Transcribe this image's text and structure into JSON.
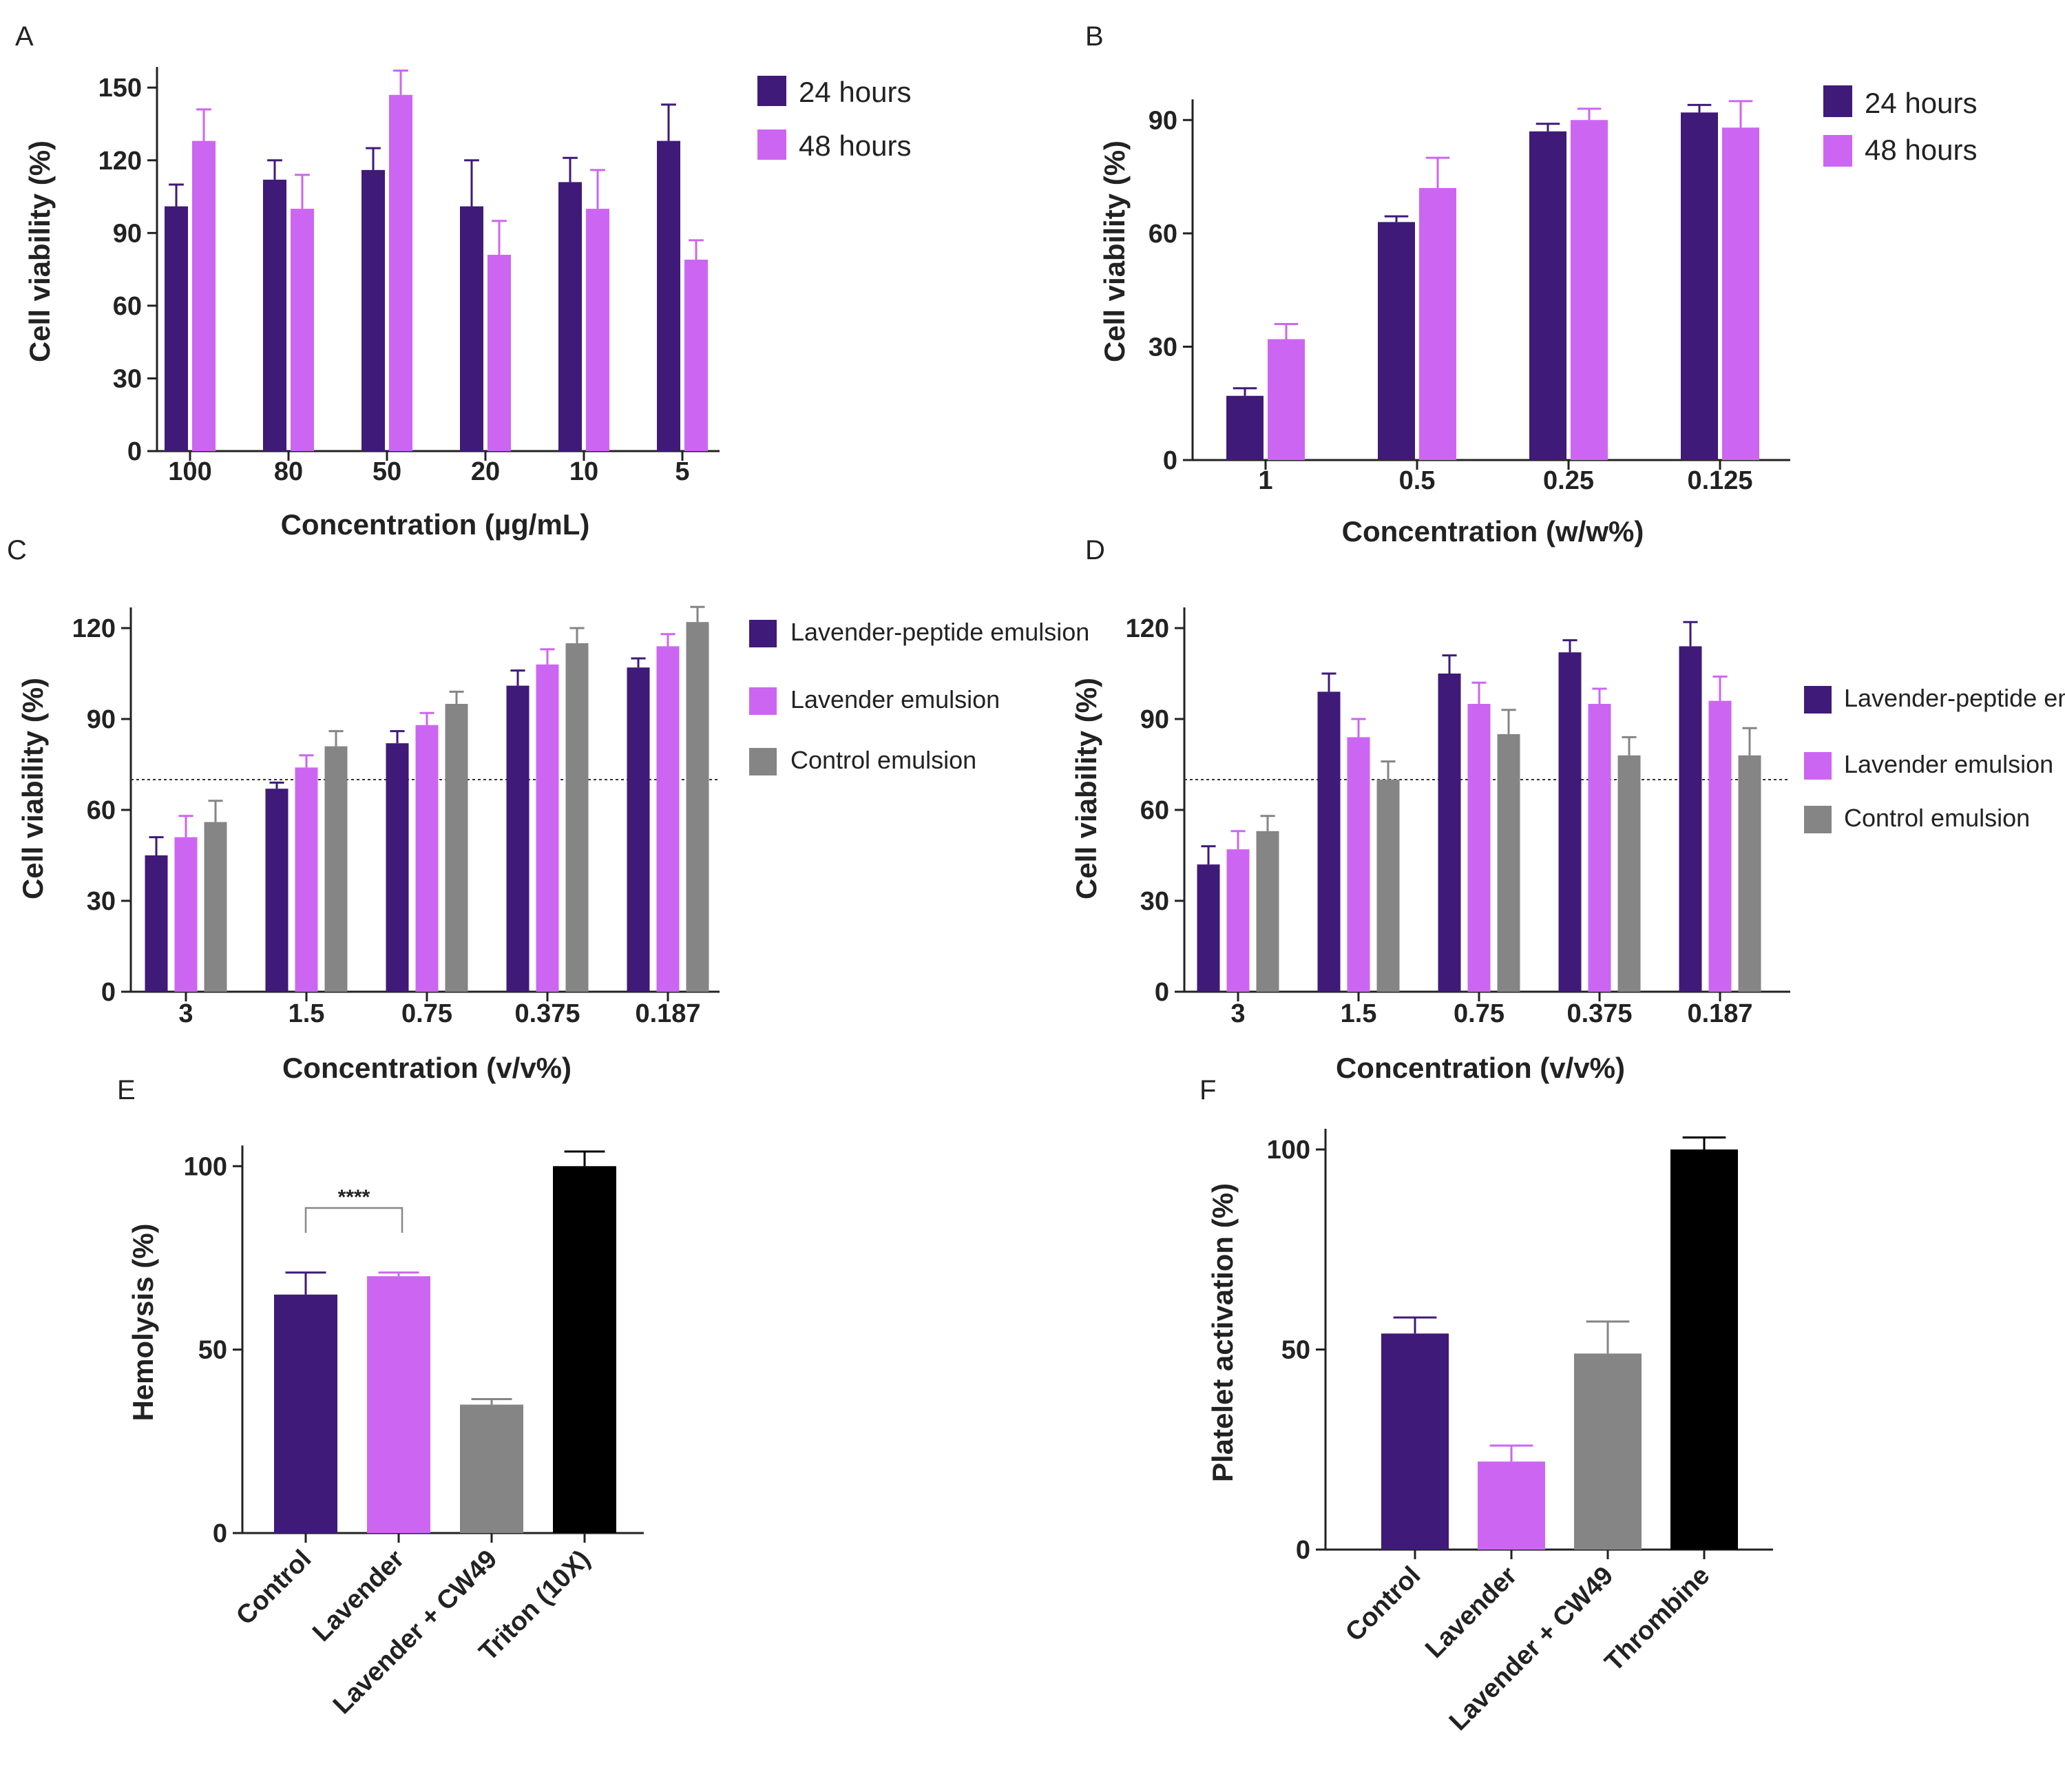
{
  "colors": {
    "dark_purple": "#3f1a78",
    "light_purple": "#cc66f2",
    "gray": "#858585",
    "black": "#000000",
    "axis": "#222222"
  },
  "chart_data": [
    {
      "panel": "A",
      "type": "bar",
      "xlabel": "Concentration (µg/mL)",
      "ylabel": "Cell viability (%)",
      "ylim": [
        0,
        160
      ],
      "yticks": [
        0,
        30,
        60,
        90,
        120,
        150
      ],
      "categories": [
        "100",
        "80",
        "50",
        "20",
        "10",
        "5"
      ],
      "series": [
        {
          "name": "24 hours",
          "color": "#3f1a78",
          "values": [
            101,
            112,
            116,
            101,
            111,
            128
          ],
          "errors": [
            9,
            8,
            9,
            19,
            10,
            15
          ]
        },
        {
          "name": "48 hours",
          "color": "#cc66f2",
          "values": [
            128,
            100,
            147,
            81,
            100,
            79
          ],
          "errors": [
            13,
            14,
            10,
            14,
            16,
            8
          ]
        }
      ],
      "legend_position": "top-right"
    },
    {
      "panel": "B",
      "type": "bar",
      "xlabel": "Concentration (w/w%)",
      "ylabel": "Cell viability (%)",
      "ylim": [
        0,
        105
      ],
      "yticks": [
        0,
        30,
        60,
        90
      ],
      "categories": [
        "1",
        "0.5",
        "0.25",
        "0.125"
      ],
      "series": [
        {
          "name": "24 hours",
          "color": "#3f1a78",
          "values": [
            17,
            63,
            87,
            92
          ],
          "errors": [
            2,
            1.5,
            2,
            2
          ]
        },
        {
          "name": "48 hours",
          "color": "#cc66f2",
          "values": [
            32,
            72,
            90,
            88
          ],
          "errors": [
            4,
            8,
            3,
            7
          ]
        }
      ],
      "legend_position": "top-right"
    },
    {
      "panel": "C",
      "type": "bar",
      "xlabel": "Concentration (v/v%)",
      "ylabel": "Cell viability (%)",
      "ylim": [
        0,
        130
      ],
      "yticks": [
        0,
        30,
        60,
        90,
        120
      ],
      "reference_line": 70,
      "categories": [
        "3",
        "1.5",
        "0.75",
        "0.375",
        "0.187"
      ],
      "series": [
        {
          "name": "Lavender-peptide emulsion",
          "color": "#3f1a78",
          "values": [
            45,
            67,
            82,
            101,
            107
          ],
          "errors": [
            6,
            2,
            4,
            5,
            3
          ]
        },
        {
          "name": "Lavender emulsion",
          "color": "#cc66f2",
          "values": [
            51,
            74,
            88,
            108,
            114
          ],
          "errors": [
            7,
            4,
            4,
            5,
            4
          ]
        },
        {
          "name": "Control emulsion",
          "color": "#858585",
          "values": [
            56,
            81,
            95,
            115,
            122
          ],
          "errors": [
            7,
            5,
            4,
            5,
            5
          ]
        }
      ],
      "legend_position": "right"
    },
    {
      "panel": "D",
      "type": "bar",
      "xlabel": "Concentration (v/v%)",
      "ylabel": "Cell viability (%)",
      "ylim": [
        0,
        130
      ],
      "yticks": [
        0,
        30,
        60,
        90,
        120
      ],
      "reference_line": 70,
      "categories": [
        "3",
        "1.5",
        "0.75",
        "0.375",
        "0.187"
      ],
      "series": [
        {
          "name": "Lavender-peptide emulsion",
          "color": "#3f1a78",
          "values": [
            42,
            99,
            105,
            112,
            114
          ],
          "errors": [
            6,
            6,
            6,
            4,
            8
          ]
        },
        {
          "name": "Lavender emulsion",
          "color": "#cc66f2",
          "values": [
            47,
            84,
            95,
            95,
            96
          ],
          "errors": [
            6,
            6,
            7,
            5,
            8
          ]
        },
        {
          "name": "Control emulsion",
          "color": "#858585",
          "values": [
            53,
            70,
            85,
            78,
            78
          ],
          "errors": [
            5,
            6,
            8,
            6,
            9
          ]
        }
      ],
      "legend_position": "right"
    },
    {
      "panel": "E",
      "type": "bar",
      "xlabel": "",
      "ylabel": "Hemolysis (%)",
      "ylim": [
        0,
        110
      ],
      "yticks": [
        0,
        50,
        100
      ],
      "categories": [
        "Control",
        "Lavender",
        "Lavender + CW49",
        "Triton (10X)"
      ],
      "values": [
        65,
        70,
        35,
        100
      ],
      "errors": [
        6,
        1,
        1.5,
        4
      ],
      "bar_colors": [
        "#3f1a78",
        "#cc66f2",
        "#858585",
        "#000000"
      ],
      "annotation": {
        "text": "****",
        "between": [
          "Control",
          "Lavender"
        ]
      }
    },
    {
      "panel": "F",
      "type": "bar",
      "xlabel": "",
      "ylabel": "Platelet activation (%)",
      "ylim": [
        0,
        105
      ],
      "yticks": [
        0,
        50,
        100
      ],
      "categories": [
        "Control",
        "Lavender",
        "Lavender + CW49",
        "Thrombine"
      ],
      "values": [
        54,
        22,
        49,
        100
      ],
      "errors": [
        4,
        4,
        8,
        3
      ],
      "bar_colors": [
        "#3f1a78",
        "#cc66f2",
        "#858585",
        "#000000"
      ]
    }
  ]
}
